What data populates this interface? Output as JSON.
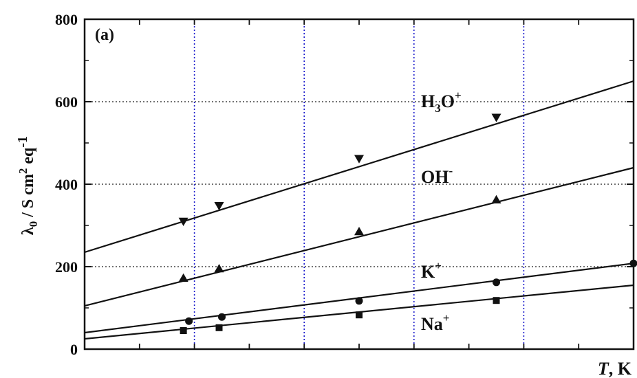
{
  "chart_data": {
    "type": "line",
    "panel_label": "(a)",
    "ylabel": {
      "main": "λ",
      "sub": "0",
      "rest": " / S cm",
      "sup": "2",
      "tail": " eq",
      "sup2": "-1"
    },
    "xlabel": {
      "italic": "T",
      "rest": ", K"
    },
    "xlim": [
      0,
      1
    ],
    "ylim": [
      0,
      800
    ],
    "yticks": [
      0,
      200,
      400,
      600,
      800
    ],
    "y_tick_labels": [
      "0",
      "200",
      "400",
      "600",
      "800"
    ],
    "x_minor_ticks": [
      0.1,
      0.2,
      0.3,
      0.4,
      0.5,
      0.6,
      0.7,
      0.8,
      0.9
    ],
    "grid": {
      "horizontal": [
        200,
        400,
        600
      ],
      "vertical": [
        0.2,
        0.4,
        0.6,
        0.8
      ],
      "horizontal_color": "#444444",
      "vertical_color": "#1a1acc"
    },
    "series": [
      {
        "name_main": "H",
        "name_sub": "3",
        "name_rest": "O",
        "name_sup": "+",
        "marker": "triangle-down",
        "fit": [
          [
            0,
            235
          ],
          [
            1,
            650
          ]
        ],
        "points": [
          [
            0.18,
            310
          ],
          [
            0.245,
            348
          ],
          [
            0.5,
            462
          ],
          [
            0.75,
            562
          ]
        ],
        "label_pos": "upper-right"
      },
      {
        "name_main": "OH",
        "name_sub": "",
        "name_rest": "",
        "name_sup": "-",
        "marker": "triangle-up",
        "fit": [
          [
            0,
            105
          ],
          [
            1,
            440
          ]
        ],
        "points": [
          [
            0.18,
            172
          ],
          [
            0.245,
            195
          ],
          [
            0.5,
            285
          ],
          [
            0.75,
            362
          ]
        ],
        "label_pos": "right"
      },
      {
        "name_main": "K",
        "name_sub": "",
        "name_rest": "",
        "name_sup": "+",
        "marker": "circle",
        "fit": [
          [
            0,
            40
          ],
          [
            1,
            208
          ]
        ],
        "points": [
          [
            0.19,
            68
          ],
          [
            0.25,
            78
          ],
          [
            0.5,
            117
          ],
          [
            0.75,
            162
          ],
          [
            1.0,
            208
          ]
        ],
        "label_pos": "right"
      },
      {
        "name_main": "Na",
        "name_sub": "",
        "name_rest": "",
        "name_sup": "+",
        "marker": "square",
        "fit": [
          [
            0,
            25
          ],
          [
            1,
            155
          ]
        ],
        "points": [
          [
            0.18,
            45
          ],
          [
            0.245,
            52
          ],
          [
            0.5,
            83
          ],
          [
            0.75,
            118
          ]
        ],
        "label_pos": "right"
      }
    ]
  }
}
